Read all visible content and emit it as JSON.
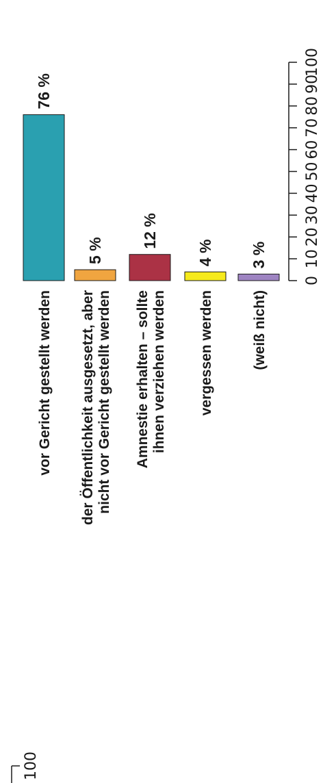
{
  "chart_data": {
    "type": "bar",
    "orientation": "vertical, figure rotated 90° counter-clockwise",
    "categories": [
      [
        "vor Gericht gestellt werden"
      ],
      [
        "der Öffentlichkeit ausgesetzt, aber",
        "nicht vor Gericht gestellt werden"
      ],
      [
        "Amnestie erhalten – sollte",
        "ihnen verziehen werden"
      ],
      [
        "vergessen werden"
      ],
      [
        "(weiß nicht)"
      ]
    ],
    "values": [
      76,
      5,
      12,
      4,
      3
    ],
    "value_labels": [
      "76 %",
      "5 %",
      "12 %",
      "4 %",
      "3 %"
    ],
    "colors": [
      "#2aa0b0",
      "#f0a540",
      "#ab3245",
      "#f6ea1c",
      "#9e84c2"
    ],
    "ylim": [
      0,
      100
    ],
    "yticks": [
      0,
      10,
      20,
      30,
      40,
      50,
      60,
      70,
      80,
      90,
      100
    ],
    "stray_label": "100",
    "grid": false,
    "legend": "none"
  }
}
